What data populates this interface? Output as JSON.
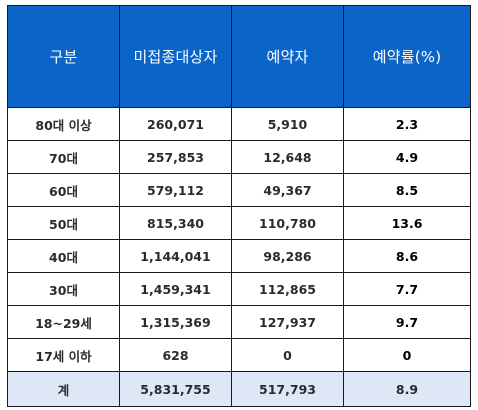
{
  "headers": [
    "구분",
    "미접종대상자",
    "예약자",
    "예약률(%)"
  ],
  "rows": [
    {
      "group": "80대 이상",
      "unvaccinated": "260,071",
      "reserved": "5,910",
      "rate": "2.3"
    },
    {
      "group": "70대",
      "unvaccinated": "257,853",
      "reserved": "12,648",
      "rate": "4.9"
    },
    {
      "group": "60대",
      "unvaccinated": "579,112",
      "reserved": "49,367",
      "rate": "8.5"
    },
    {
      "group": "50대",
      "unvaccinated": "815,340",
      "reserved": "110,780",
      "rate": "13.6"
    },
    {
      "group": "40대",
      "unvaccinated": "1,144,041",
      "reserved": "98,286",
      "rate": "8.6"
    },
    {
      "group": "30대",
      "unvaccinated": "1,459,341",
      "reserved": "112,865",
      "rate": "7.7"
    },
    {
      "group": "18~29세",
      "unvaccinated": "1,315,369",
      "reserved": "127,937",
      "rate": "9.7"
    },
    {
      "group": "17세 이하",
      "unvaccinated": "628",
      "reserved": "0",
      "rate": "0"
    }
  ],
  "total": {
    "group": "계",
    "unvaccinated": "5,831,755",
    "reserved": "517,793",
    "rate": "8.9"
  },
  "colors": {
    "header_bg": "#0b64c7",
    "total_bg": "#dfe6f5",
    "border": "#1a1a1a"
  }
}
